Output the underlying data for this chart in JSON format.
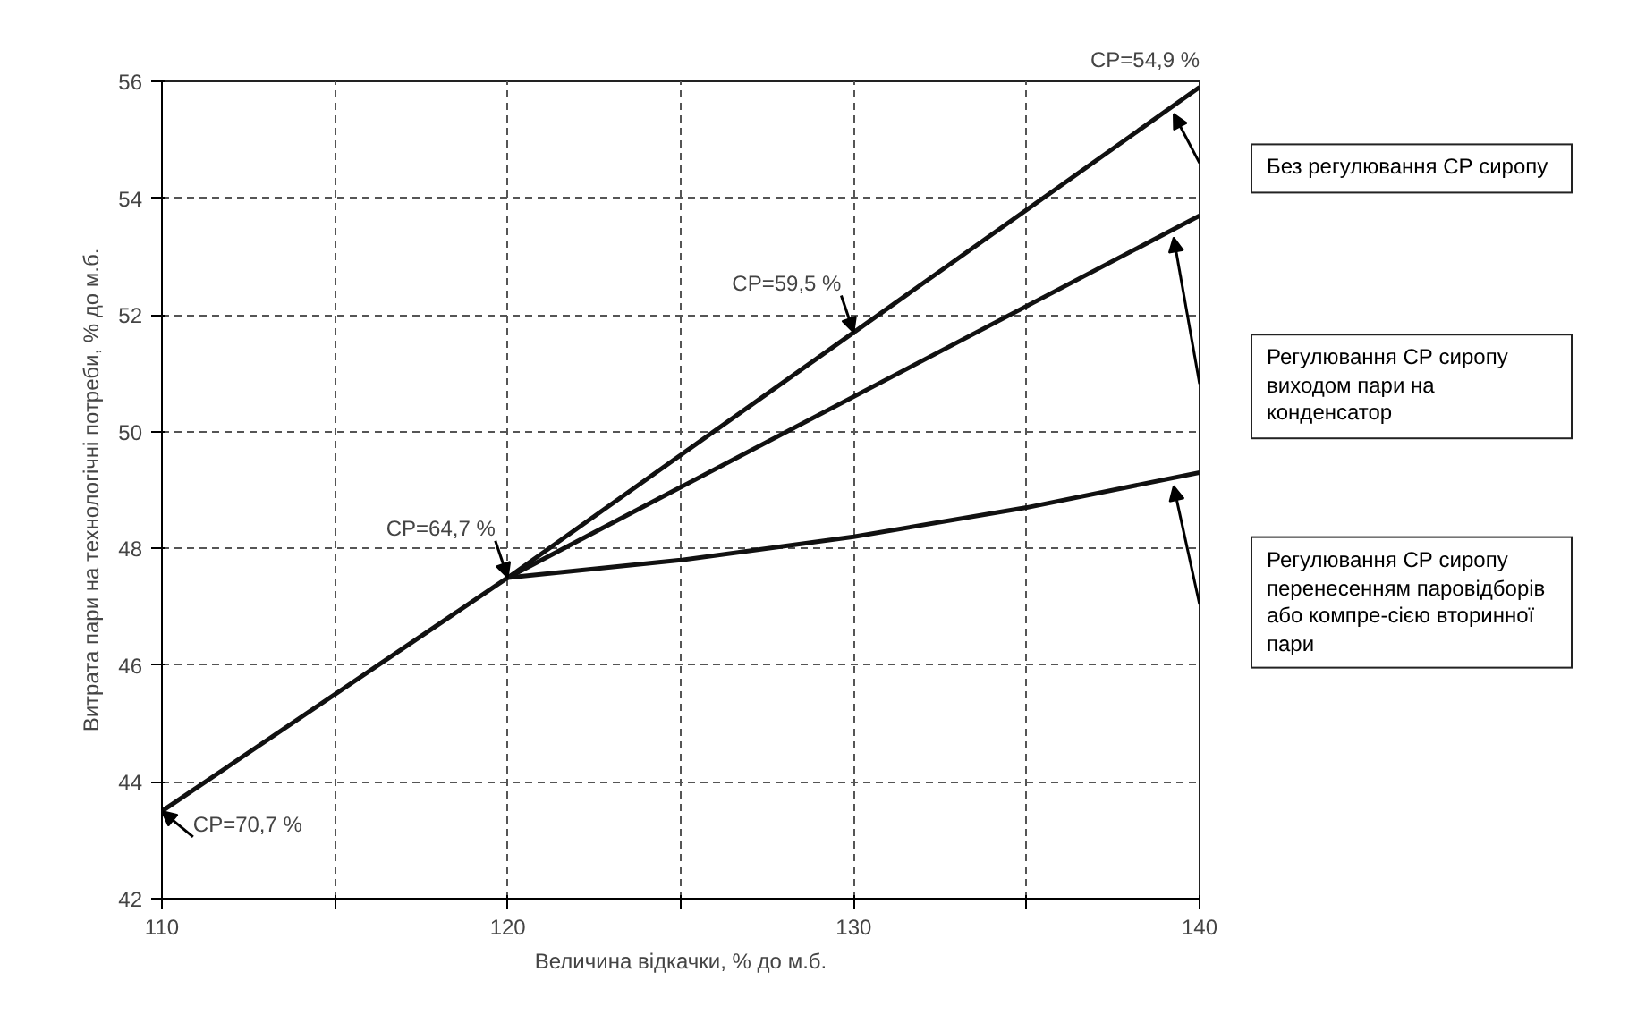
{
  "chart_data": {
    "type": "line",
    "xlabel": "Величина відкачки, % до м.б.",
    "ylabel": "Витрата пари на технологічні потреби, % до м.б.",
    "series": [
      {
        "name": "Без регулювання СР сиропу",
        "color": "#111111",
        "x": [
          110,
          120,
          140
        ],
        "values": [
          43.5,
          47.5,
          55.9
        ]
      },
      {
        "name": "Регулювання СР сиропу виходом пари на конденсатор",
        "color": "#111111",
        "x": [
          120,
          140
        ],
        "values": [
          47.5,
          53.7
        ]
      },
      {
        "name": "Регулювання СР сиропу перенесенням паровідборів або компре-сією вторинної пари",
        "color": "#111111",
        "x": [
          120,
          125,
          130,
          135,
          140
        ],
        "values": [
          47.5,
          47.8,
          48.2,
          48.7,
          49.3
        ]
      }
    ],
    "xlim": [
      110,
      140
    ],
    "ylim": [
      42,
      56
    ],
    "xticks": [
      110,
      {
        "value": 115,
        "label": null
      },
      120,
      {
        "value": 125,
        "label": null
      },
      130,
      {
        "value": 135,
        "label": null
      },
      140
    ],
    "yticks": [
      42,
      44,
      46,
      48,
      50,
      52,
      54,
      56
    ],
    "grid": true,
    "marker": "none",
    "line_style": "solid",
    "annotations": [
      {
        "text": "СР=54,9 %",
        "x": 140,
        "y": 55.9
      },
      {
        "text": "СР=59,5 %",
        "x": 130,
        "y": 51.7
      },
      {
        "text": "СР=64,7 %",
        "x": 120,
        "y": 47.5
      },
      {
        "text": "СР=70,7 %",
        "x": 110,
        "y": 43.5
      }
    ]
  }
}
